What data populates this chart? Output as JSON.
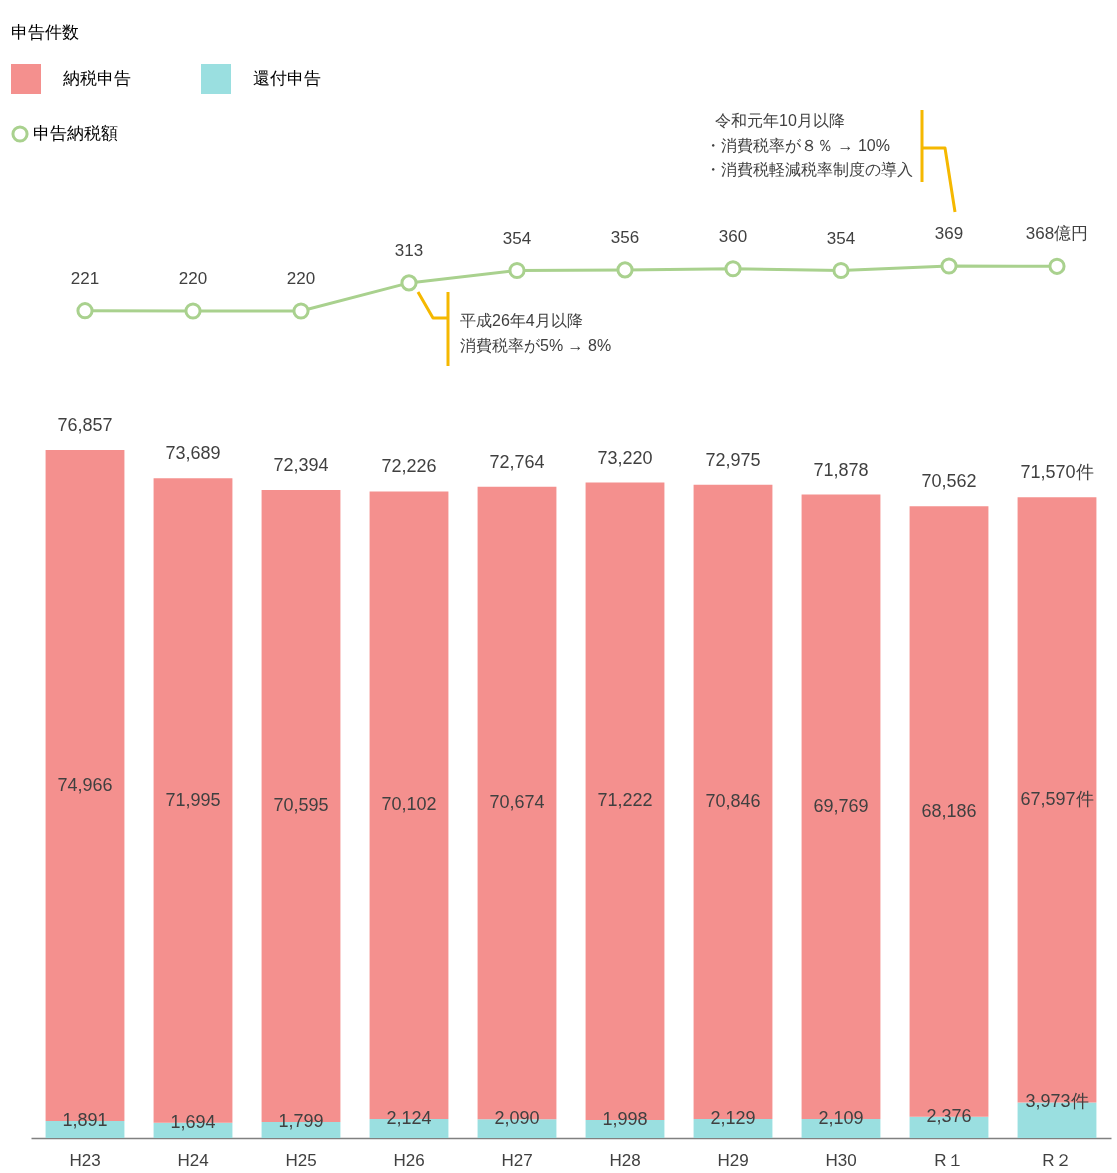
{
  "chart_data": [
    {
      "type": "line",
      "categories": [
        null,
        null,
        null,
        null,
        null,
        null,
        null,
        null,
        null,
        null
      ],
      "series": [
        {
          "name": "申告納税額",
          "color": "#a9d18e",
          "values": [
            221,
            220,
            220,
            313,
            354,
            356,
            360,
            354,
            369,
            368
          ],
          "value_labels": [
            "221",
            "220",
            "220",
            "313",
            "354",
            "356",
            "360",
            "354",
            "369",
            "368億円"
          ]
        }
      ],
      "marker": "circle",
      "legend": "top left",
      "annotations": [
        "平成26年4月以降",
        "消費税率が5% → 8%",
        "令和元年10月以降",
        "・消費税率が８％ → 10%",
        "・消費税軽減税率制度の導入"
      ]
    },
    {
      "type": "bar",
      "stacked": true,
      "categories": [
        "H23",
        "H24",
        "H25",
        "H26",
        "H27",
        "H28",
        "H29",
        "H30",
        "R１",
        "R２"
      ],
      "legend_title": "申告件数",
      "legend": "top left",
      "series": [
        {
          "name": "還付申告",
          "color": "#9adfe0",
          "values": [
            1891,
            1694,
            1799,
            2124,
            2090,
            1998,
            2129,
            2109,
            2376,
            3973
          ],
          "value_labels": [
            "1,891",
            "1,694",
            "1,799",
            "2,124",
            "2,090",
            "1,998",
            "2,129",
            "2,109",
            "2,376",
            "3,973件"
          ]
        },
        {
          "name": "納税申告",
          "color": "#f4908e",
          "values": [
            74966,
            71995,
            70595,
            70102,
            70674,
            71222,
            70846,
            69769,
            68186,
            67597
          ],
          "value_labels": [
            "74,966",
            "71,995",
            "70,595",
            "70,102",
            "70,674",
            "71,222",
            "70,846",
            "69,769",
            "68,186",
            "67,597件"
          ]
        }
      ],
      "totals": [
        "76,857",
        "73,689",
        "72,394",
        "72,226",
        "72,764",
        "73,220",
        "72,975",
        "71,878",
        "70,562",
        "71,570件"
      ]
    }
  ]
}
